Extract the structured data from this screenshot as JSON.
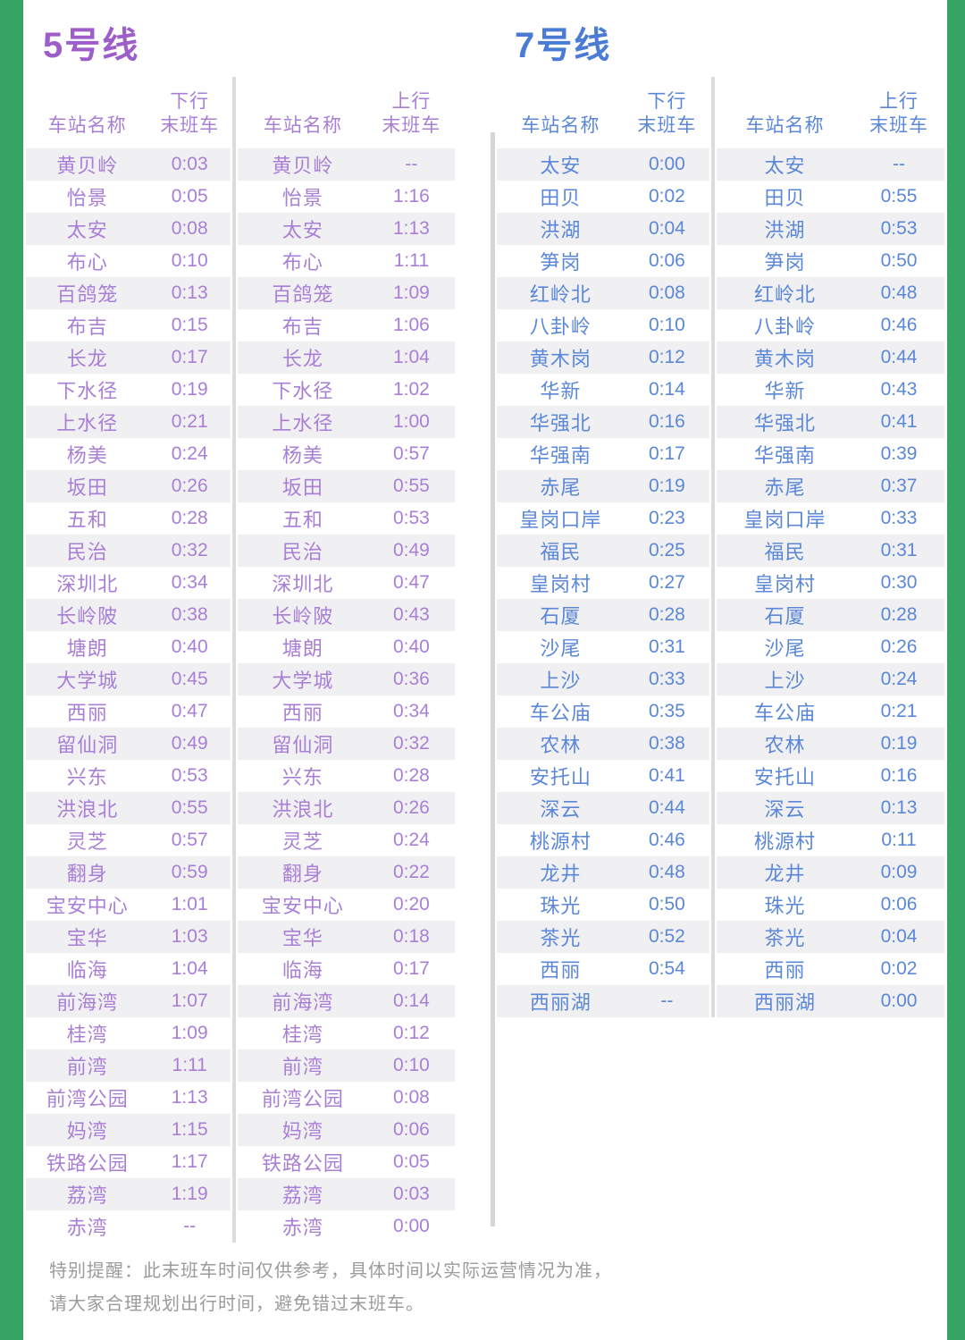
{
  "page": {
    "accent_green": "#36a563",
    "stripe_color": "#f0f0f2",
    "divider_color": "#dcdcdc",
    "section_divider_color": "#d6d6d6",
    "footer": {
      "line1": "特别提醒：此末班车时间仅供参考，具体时间以实际运营情况为准，",
      "line2": "请大家合理规划出行时间，避免错过末班车。"
    }
  },
  "lines": [
    {
      "name": "5号线",
      "title_color": "#9d5ec9",
      "text_color": "#a97fd6",
      "tables": [
        {
          "headers": {
            "station": "车站名称",
            "direction": "下行",
            "train": "末班车"
          },
          "rows": [
            [
              "黄贝岭",
              "0:03"
            ],
            [
              "怡景",
              "0:05"
            ],
            [
              "太安",
              "0:08"
            ],
            [
              "布心",
              "0:10"
            ],
            [
              "百鸽笼",
              "0:13"
            ],
            [
              "布吉",
              "0:15"
            ],
            [
              "长龙",
              "0:17"
            ],
            [
              "下水径",
              "0:19"
            ],
            [
              "上水径",
              "0:21"
            ],
            [
              "杨美",
              "0:24"
            ],
            [
              "坂田",
              "0:26"
            ],
            [
              "五和",
              "0:28"
            ],
            [
              "民治",
              "0:32"
            ],
            [
              "深圳北",
              "0:34"
            ],
            [
              "长岭陂",
              "0:38"
            ],
            [
              "塘朗",
              "0:40"
            ],
            [
              "大学城",
              "0:45"
            ],
            [
              "西丽",
              "0:47"
            ],
            [
              "留仙洞",
              "0:49"
            ],
            [
              "兴东",
              "0:53"
            ],
            [
              "洪浪北",
              "0:55"
            ],
            [
              "灵芝",
              "0:57"
            ],
            [
              "翻身",
              "0:59"
            ],
            [
              "宝安中心",
              "1:01"
            ],
            [
              "宝华",
              "1:03"
            ],
            [
              "临海",
              "1:04"
            ],
            [
              "前海湾",
              "1:07"
            ],
            [
              "桂湾",
              "1:09"
            ],
            [
              "前湾",
              "1:11"
            ],
            [
              "前湾公园",
              "1:13"
            ],
            [
              "妈湾",
              "1:15"
            ],
            [
              "铁路公园",
              "1:17"
            ],
            [
              "荔湾",
              "1:19"
            ],
            [
              "赤湾",
              "--"
            ]
          ]
        },
        {
          "headers": {
            "station": "车站名称",
            "direction": "上行",
            "train": "末班车"
          },
          "rows": [
            [
              "黄贝岭",
              "--"
            ],
            [
              "怡景",
              "1:16"
            ],
            [
              "太安",
              "1:13"
            ],
            [
              "布心",
              "1:11"
            ],
            [
              "百鸽笼",
              "1:09"
            ],
            [
              "布吉",
              "1:06"
            ],
            [
              "长龙",
              "1:04"
            ],
            [
              "下水径",
              "1:02"
            ],
            [
              "上水径",
              "1:00"
            ],
            [
              "杨美",
              "0:57"
            ],
            [
              "坂田",
              "0:55"
            ],
            [
              "五和",
              "0:53"
            ],
            [
              "民治",
              "0:49"
            ],
            [
              "深圳北",
              "0:47"
            ],
            [
              "长岭陂",
              "0:43"
            ],
            [
              "塘朗",
              "0:40"
            ],
            [
              "大学城",
              "0:36"
            ],
            [
              "西丽",
              "0:34"
            ],
            [
              "留仙洞",
              "0:32"
            ],
            [
              "兴东",
              "0:28"
            ],
            [
              "洪浪北",
              "0:26"
            ],
            [
              "灵芝",
              "0:24"
            ],
            [
              "翻身",
              "0:22"
            ],
            [
              "宝安中心",
              "0:20"
            ],
            [
              "宝华",
              "0:18"
            ],
            [
              "临海",
              "0:17"
            ],
            [
              "前海湾",
              "0:14"
            ],
            [
              "桂湾",
              "0:12"
            ],
            [
              "前湾",
              "0:10"
            ],
            [
              "前湾公园",
              "0:08"
            ],
            [
              "妈湾",
              "0:06"
            ],
            [
              "铁路公园",
              "0:05"
            ],
            [
              "荔湾",
              "0:03"
            ],
            [
              "赤湾",
              "0:00"
            ]
          ]
        }
      ]
    },
    {
      "name": "7号线",
      "title_color": "#4a7cd4",
      "text_color": "#5b87d8",
      "tables": [
        {
          "headers": {
            "station": "车站名称",
            "direction": "下行",
            "train": "末班车"
          },
          "rows": [
            [
              "太安",
              "0:00"
            ],
            [
              "田贝",
              "0:02"
            ],
            [
              "洪湖",
              "0:04"
            ],
            [
              "笋岗",
              "0:06"
            ],
            [
              "红岭北",
              "0:08"
            ],
            [
              "八卦岭",
              "0:10"
            ],
            [
              "黄木岗",
              "0:12"
            ],
            [
              "华新",
              "0:14"
            ],
            [
              "华强北",
              "0:16"
            ],
            [
              "华强南",
              "0:17"
            ],
            [
              "赤尾",
              "0:19"
            ],
            [
              "皇岗口岸",
              "0:23"
            ],
            [
              "福民",
              "0:25"
            ],
            [
              "皇岗村",
              "0:27"
            ],
            [
              "石厦",
              "0:28"
            ],
            [
              "沙尾",
              "0:31"
            ],
            [
              "上沙",
              "0:33"
            ],
            [
              "车公庙",
              "0:35"
            ],
            [
              "农林",
              "0:38"
            ],
            [
              "安托山",
              "0:41"
            ],
            [
              "深云",
              "0:44"
            ],
            [
              "桃源村",
              "0:46"
            ],
            [
              "龙井",
              "0:48"
            ],
            [
              "珠光",
              "0:50"
            ],
            [
              "茶光",
              "0:52"
            ],
            [
              "西丽",
              "0:54"
            ],
            [
              "西丽湖",
              "--"
            ]
          ]
        },
        {
          "headers": {
            "station": "车站名称",
            "direction": "上行",
            "train": "末班车"
          },
          "rows": [
            [
              "太安",
              "--"
            ],
            [
              "田贝",
              "0:55"
            ],
            [
              "洪湖",
              "0:53"
            ],
            [
              "笋岗",
              "0:50"
            ],
            [
              "红岭北",
              "0:48"
            ],
            [
              "八卦岭",
              "0:46"
            ],
            [
              "黄木岗",
              "0:44"
            ],
            [
              "华新",
              "0:43"
            ],
            [
              "华强北",
              "0:41"
            ],
            [
              "华强南",
              "0:39"
            ],
            [
              "赤尾",
              "0:37"
            ],
            [
              "皇岗口岸",
              "0:33"
            ],
            [
              "福民",
              "0:31"
            ],
            [
              "皇岗村",
              "0:30"
            ],
            [
              "石厦",
              "0:28"
            ],
            [
              "沙尾",
              "0:26"
            ],
            [
              "上沙",
              "0:24"
            ],
            [
              "车公庙",
              "0:21"
            ],
            [
              "农林",
              "0:19"
            ],
            [
              "安托山",
              "0:16"
            ],
            [
              "深云",
              "0:13"
            ],
            [
              "桃源村",
              "0:11"
            ],
            [
              "龙井",
              "0:09"
            ],
            [
              "珠光",
              "0:06"
            ],
            [
              "茶光",
              "0:04"
            ],
            [
              "西丽",
              "0:02"
            ],
            [
              "西丽湖",
              "0:00"
            ]
          ]
        }
      ]
    }
  ]
}
